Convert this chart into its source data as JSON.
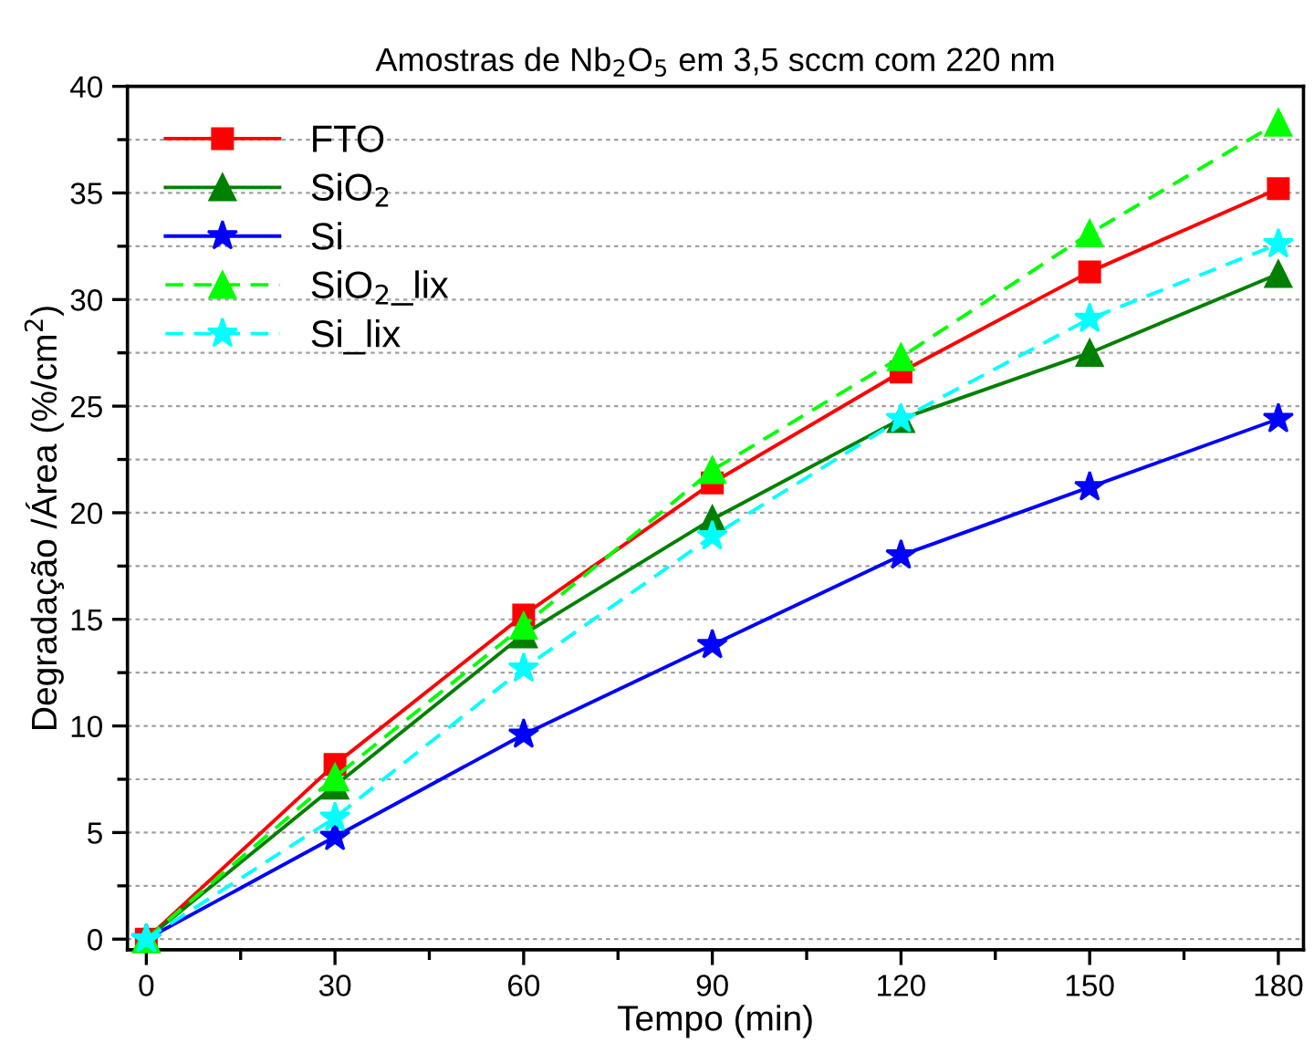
{
  "chart_data": {
    "type": "line",
    "title": "Amostras de Nb$_{2}$O$_{5}$ em 3,5 sccm com 220 nm",
    "xlabel": "Tempo (min)",
    "ylabel": "Degradação /Área (%/cm$^{2}$)",
    "x": [
      0,
      30,
      60,
      90,
      120,
      150,
      180
    ],
    "series": [
      {
        "name": "FTO",
        "color": "#ff0000",
        "marker": "square",
        "line_style": "solid",
        "values": [
          0,
          8.2,
          15.2,
          21.4,
          26.6,
          31.3,
          35.2
        ]
      },
      {
        "name": "SiO$_{2}$",
        "color": "#008000",
        "marker": "triangle",
        "line_style": "solid",
        "values": [
          0,
          7.2,
          14.3,
          19.7,
          24.4,
          27.5,
          31.2
        ]
      },
      {
        "name": "Si",
        "color": "#0000ff",
        "marker": "star",
        "line_style": "solid",
        "values": [
          0,
          4.8,
          9.6,
          13.8,
          18.0,
          21.2,
          24.4
        ]
      },
      {
        "name": "SiO$_{2}$_lix",
        "color": "#00ff00",
        "marker": "triangle",
        "line_style": "dashed",
        "values": [
          0,
          7.6,
          14.7,
          22.0,
          27.3,
          33.1,
          38.3
        ]
      },
      {
        "name": "Si_lix",
        "color": "#00ffff",
        "marker": "star",
        "line_style": "dashed",
        "values": [
          0,
          5.7,
          12.7,
          18.9,
          24.4,
          29.1,
          32.6
        ]
      }
    ],
    "xlim": [
      -3,
      184
    ],
    "xticks": [
      0,
      30,
      60,
      90,
      120,
      150,
      180
    ],
    "ylim": [
      -0.5,
      40
    ],
    "yticks": [
      0,
      5,
      10,
      15,
      20,
      25,
      30,
      35,
      40
    ],
    "grid": "y",
    "legend": "top left"
  }
}
